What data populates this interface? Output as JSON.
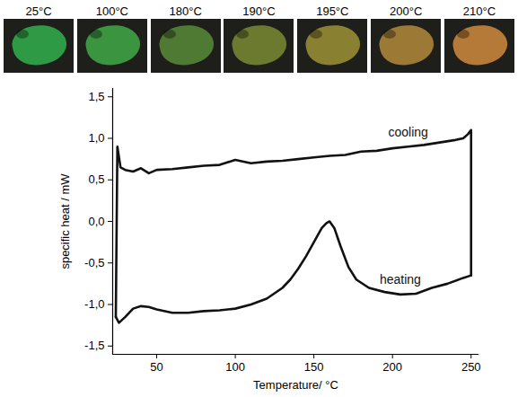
{
  "photos": {
    "labels": [
      "25°C",
      "100°C",
      "180°C",
      "190°C",
      "195°C",
      "200°C",
      "210°C"
    ],
    "colors": [
      "#2f9a45",
      "#3a9440",
      "#4f7a33",
      "#6c7a30",
      "#8a8032",
      "#9c7a36",
      "#b57a38"
    ]
  },
  "chart_data": {
    "type": "line",
    "xlabel": "Temperature/ °C",
    "ylabel": "specific heat / mW",
    "xlim": [
      22,
      255
    ],
    "xticks": [
      50,
      100,
      150,
      200,
      250
    ],
    "ylim": [
      -1.6,
      1.6
    ],
    "yticks": [
      {
        "value": -1.5,
        "label": "-1,5"
      },
      {
        "value": -1.0,
        "label": "-1,0"
      },
      {
        "value": -0.5,
        "label": "-0,5"
      },
      {
        "value": 0.0,
        "label": "0,0"
      },
      {
        "value": 0.5,
        "label": "0,5"
      },
      {
        "value": 1.0,
        "label": "1,0"
      },
      {
        "value": 1.5,
        "label": "1,5"
      }
    ],
    "grid": false,
    "series": [
      {
        "name": "cooling",
        "color": "#111111",
        "x": [
          250,
          250,
          248,
          245,
          240,
          230,
          220,
          210,
          200,
          190,
          180,
          170,
          160,
          150,
          140,
          130,
          120,
          110,
          100,
          90,
          80,
          70,
          60,
          50,
          45,
          40,
          35,
          30,
          27,
          25,
          24
        ],
        "values": [
          -0.65,
          1.1,
          1.05,
          1.0,
          0.98,
          0.95,
          0.92,
          0.9,
          0.88,
          0.85,
          0.84,
          0.8,
          0.79,
          0.77,
          0.75,
          0.73,
          0.72,
          0.7,
          0.74,
          0.68,
          0.67,
          0.65,
          0.63,
          0.62,
          0.58,
          0.64,
          0.6,
          0.62,
          0.65,
          0.9,
          -1.15
        ]
      },
      {
        "name": "heating",
        "color": "#111111",
        "x": [
          24,
          26,
          30,
          35,
          40,
          45,
          50,
          60,
          70,
          80,
          90,
          100,
          110,
          120,
          130,
          135,
          140,
          145,
          150,
          155,
          158,
          160,
          163,
          167,
          172,
          177,
          185,
          195,
          205,
          215,
          225,
          235,
          245,
          250
        ],
        "values": [
          -1.15,
          -1.22,
          -1.15,
          -1.05,
          -1.02,
          -1.03,
          -1.06,
          -1.1,
          -1.1,
          -1.08,
          -1.07,
          -1.05,
          -1.0,
          -0.93,
          -0.8,
          -0.7,
          -0.57,
          -0.42,
          -0.25,
          -0.08,
          -0.02,
          0.0,
          -0.08,
          -0.3,
          -0.55,
          -0.7,
          -0.8,
          -0.85,
          -0.88,
          -0.87,
          -0.8,
          -0.75,
          -0.68,
          -0.65
        ]
      }
    ]
  }
}
